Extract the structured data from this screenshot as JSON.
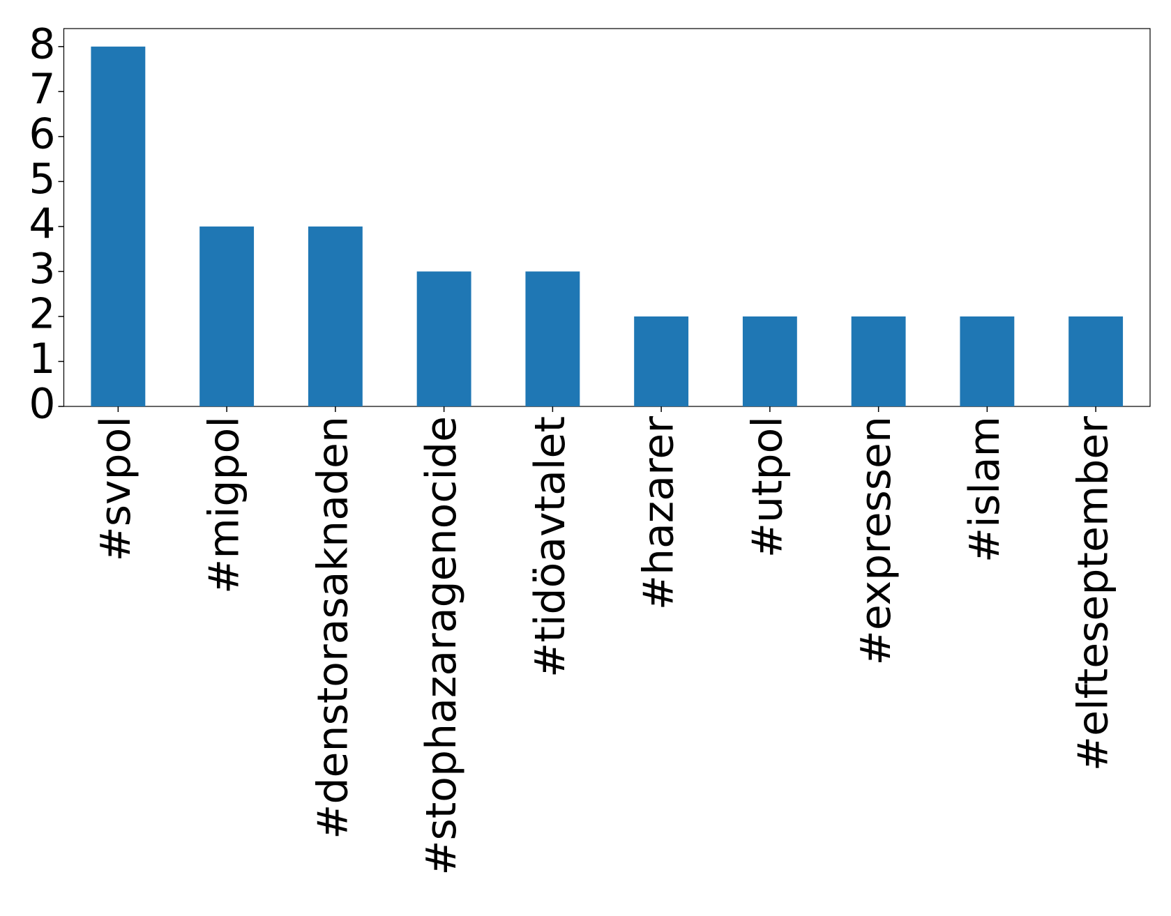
{
  "chart_data": {
    "type": "bar",
    "categories": [
      "#svpol",
      "#migpol",
      "#denstorasaknaden",
      "#stophazaragenocide",
      "#tidöavtalet",
      "#hazarer",
      "#utpol",
      "#expressen",
      "#islam",
      "#elfteseptember"
    ],
    "values": [
      8,
      4,
      4,
      3,
      3,
      2,
      2,
      2,
      2,
      2
    ],
    "color": "#1f77b4",
    "ylim": [
      0,
      8.4
    ],
    "yticks": [
      0,
      1,
      2,
      3,
      4,
      5,
      6,
      7,
      8
    ],
    "grid": false
  }
}
